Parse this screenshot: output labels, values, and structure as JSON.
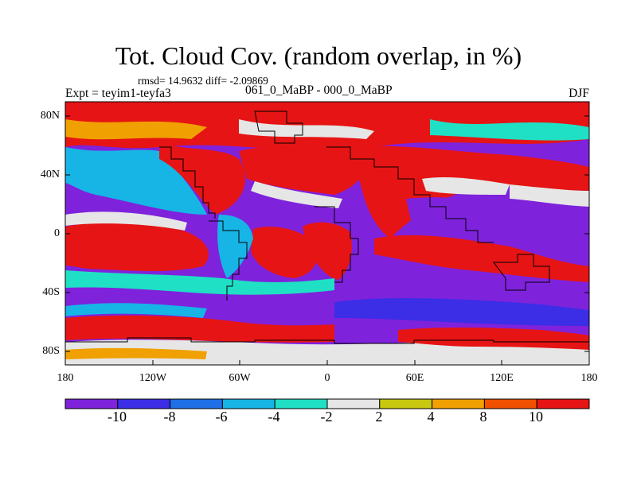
{
  "title": "Tot. Cloud Cov. (random overlap, in %)",
  "stats": "rmsd= 14.9632 diff= -2.09869",
  "experiment": "Expt = teyim1-teyfa3",
  "period": "061_0_MaBP - 000_0_MaBP",
  "season": "DJF",
  "y_axis_labels": [
    "80N",
    "40N",
    "0",
    "40S",
    "80S"
  ],
  "x_axis_labels": [
    "180",
    "120W",
    "60W",
    "0",
    "60E",
    "120E",
    "180"
  ],
  "colorbar": {
    "labels": [
      "-10",
      "-8",
      "-6",
      "-4",
      "-2",
      "2",
      "4",
      "8",
      "10"
    ],
    "colors": [
      "#7f22dc",
      "#3b2ee6",
      "#1f6fe6",
      "#17b4e6",
      "#1fe0c4",
      "#e6e6e6",
      "#c8c810",
      "#f0a000",
      "#f05000",
      "#e61414"
    ]
  }
}
